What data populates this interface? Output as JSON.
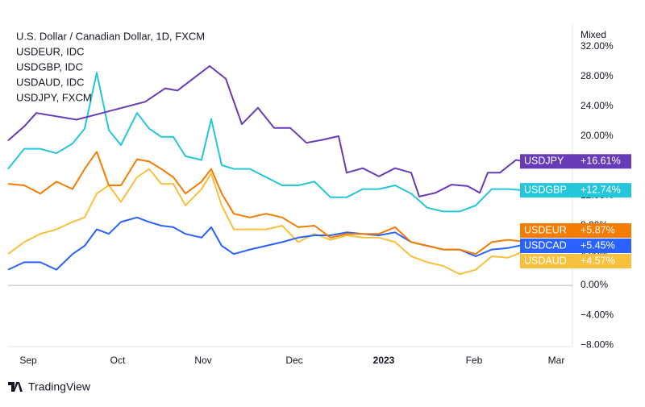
{
  "chart_data": {
    "type": "line",
    "scale_label": "Mixed",
    "legend_labels": [
      "U.S. Dollar / Canadian Dollar, 1D, FXCM",
      "USDEUR, IDC",
      "USDGBP, IDC",
      "USDAUD, IDC",
      "USDJPY, FXCM"
    ],
    "branding": "TradingView",
    "x": [
      0,
      4,
      8,
      12,
      16,
      19,
      22,
      25,
      28,
      32,
      35,
      38,
      41,
      44,
      48,
      50.4,
      53,
      56,
      60,
      64,
      68,
      72,
      76,
      80,
      84,
      88,
      92,
      96,
      100,
      104,
      108,
      112,
      116,
      120,
      124,
      128
    ],
    "xlim": [
      0,
      140
    ],
    "xticks": [
      {
        "value": 5,
        "label": "Sep"
      },
      {
        "value": 27.2,
        "label": "Oct"
      },
      {
        "value": 48.4,
        "label": "Nov"
      },
      {
        "value": 71,
        "label": "Dec"
      },
      {
        "value": 93.2,
        "label": "2023"
      },
      {
        "value": 115.6,
        "label": "Feb"
      },
      {
        "value": 136,
        "label": "Mar"
      }
    ],
    "ylim": [
      -8.2,
      35
    ],
    "yticks": [
      {
        "value": 32,
        "label": "32.00%"
      },
      {
        "value": 28,
        "label": "28.00%"
      },
      {
        "value": 24,
        "label": "24.00%"
      },
      {
        "value": 20,
        "label": "20.00%"
      },
      {
        "value": 16,
        "label": "16.00%"
      },
      {
        "value": 12,
        "label": "12.00%"
      },
      {
        "value": 8,
        "label": "8.00%"
      },
      {
        "value": 4,
        "label": "4.00%"
      },
      {
        "value": 0,
        "label": "0.00%"
      },
      {
        "value": -4,
        "label": "−4.00%"
      },
      {
        "value": -8,
        "label": "−8.00%"
      }
    ],
    "zero_line": true,
    "series": [
      {
        "name": "USDJPY",
        "color": "#673ab7",
        "x": [
          0,
          4,
          7,
          17,
          34,
          39,
          42,
          50,
          54,
          58,
          62,
          66,
          70,
          74,
          78,
          82,
          84,
          88,
          92,
          96,
          100,
          102,
          106,
          110,
          114,
          117,
          119,
          122,
          126,
          128
        ],
        "values": [
          19.4,
          21.3,
          23.1,
          22.2,
          24.6,
          26.4,
          26.1,
          29.4,
          27.7,
          21.6,
          23.8,
          21.1,
          21.1,
          19.1,
          19.5,
          20,
          15.1,
          15.7,
          14.6,
          15.7,
          15.1,
          11.9,
          12.4,
          13.5,
          13.3,
          12.4,
          15.1,
          15.1,
          16.8,
          16.61
        ],
        "value_labels": [
          null,
          null,
          null,
          null,
          null,
          null,
          null,
          null,
          null,
          null,
          null,
          null,
          null,
          null,
          null,
          null,
          null,
          null,
          null,
          null,
          null,
          null,
          null,
          null,
          null,
          null,
          null,
          null,
          null,
          "+16.61%"
        ]
      },
      {
        "name": "USDGBP",
        "color": "#26c6da",
        "values": [
          15.6,
          18.3,
          18.3,
          17.7,
          19.0,
          21.0,
          28.5,
          20.8,
          18.8,
          23.1,
          21.0,
          19.9,
          19.9,
          17.3,
          16.8,
          22.3,
          16.1,
          15.6,
          15.6,
          14.5,
          13.4,
          13.4,
          13.9,
          11.8,
          11.8,
          12.9,
          12.9,
          13.4,
          12.3,
          10.4,
          9.9,
          9.9,
          10.7,
          12.9,
          12.9,
          12.74
        ],
        "value_labels": [
          null,
          null,
          null,
          null,
          null,
          null,
          null,
          null,
          null,
          null,
          null,
          null,
          null,
          null,
          null,
          null,
          null,
          null,
          null,
          null,
          null,
          null,
          null,
          null,
          null,
          null,
          null,
          null,
          null,
          null,
          null,
          null,
          null,
          null,
          null,
          "+12.74%"
        ]
      },
      {
        "name": "USDEUR",
        "color": "#f57c00",
        "values": [
          13.6,
          13.4,
          12.3,
          13.9,
          12.9,
          15.6,
          17.9,
          13.4,
          13.4,
          16.9,
          16.6,
          15.6,
          14.5,
          12.3,
          13.9,
          15.6,
          12.3,
          9.6,
          9.1,
          9.6,
          9.1,
          7.8,
          8.0,
          6.4,
          6.9,
          6.9,
          6.9,
          7.8,
          5.8,
          5.3,
          4.8,
          4.8,
          4.2,
          5.8,
          6.1,
          5.87
        ],
        "value_labels": [
          null,
          null,
          null,
          null,
          null,
          null,
          null,
          null,
          null,
          null,
          null,
          null,
          null,
          null,
          null,
          null,
          null,
          null,
          null,
          null,
          null,
          null,
          null,
          null,
          null,
          null,
          null,
          null,
          null,
          null,
          null,
          null,
          null,
          null,
          null,
          "+5.87%"
        ]
      },
      {
        "name": "USDCAD",
        "color": "#2962ff",
        "values": [
          2.1,
          3.1,
          3.1,
          2.1,
          4.2,
          5.3,
          7.5,
          6.9,
          8.5,
          9.1,
          8.5,
          8.0,
          7.8,
          6.9,
          6.4,
          7.8,
          5.3,
          4.2,
          4.8,
          5.3,
          5.8,
          6.4,
          6.7,
          6.7,
          7.1,
          6.9,
          6.7,
          7.1,
          5.8,
          5.3,
          4.8,
          4.8,
          3.9,
          4.8,
          5.0,
          5.45
        ],
        "value_labels": [
          null,
          null,
          null,
          null,
          null,
          null,
          null,
          null,
          null,
          null,
          null,
          null,
          null,
          null,
          null,
          null,
          null,
          null,
          null,
          null,
          null,
          null,
          null,
          null,
          null,
          null,
          null,
          null,
          null,
          null,
          null,
          null,
          null,
          null,
          null,
          "+5.45%"
        ]
      },
      {
        "name": "USDAUD",
        "color": "#f7c03d",
        "values": [
          4.2,
          5.8,
          6.9,
          7.5,
          8.5,
          9.1,
          12.3,
          13.4,
          11.2,
          14.5,
          15.6,
          13.6,
          13.6,
          10.7,
          12.9,
          15.0,
          10.7,
          7.5,
          7.5,
          7.5,
          8.0,
          5.8,
          6.9,
          6.1,
          6.7,
          6.4,
          6.4,
          5.8,
          3.9,
          3.1,
          2.6,
          1.5,
          2.1,
          3.9,
          3.7,
          4.57
        ],
        "value_labels": [
          null,
          null,
          null,
          null,
          null,
          null,
          null,
          null,
          null,
          null,
          null,
          null,
          null,
          null,
          null,
          null,
          null,
          null,
          null,
          null,
          null,
          null,
          null,
          null,
          null,
          null,
          null,
          null,
          null,
          null,
          null,
          null,
          null,
          null,
          null,
          "+4.57%"
        ]
      }
    ]
  }
}
